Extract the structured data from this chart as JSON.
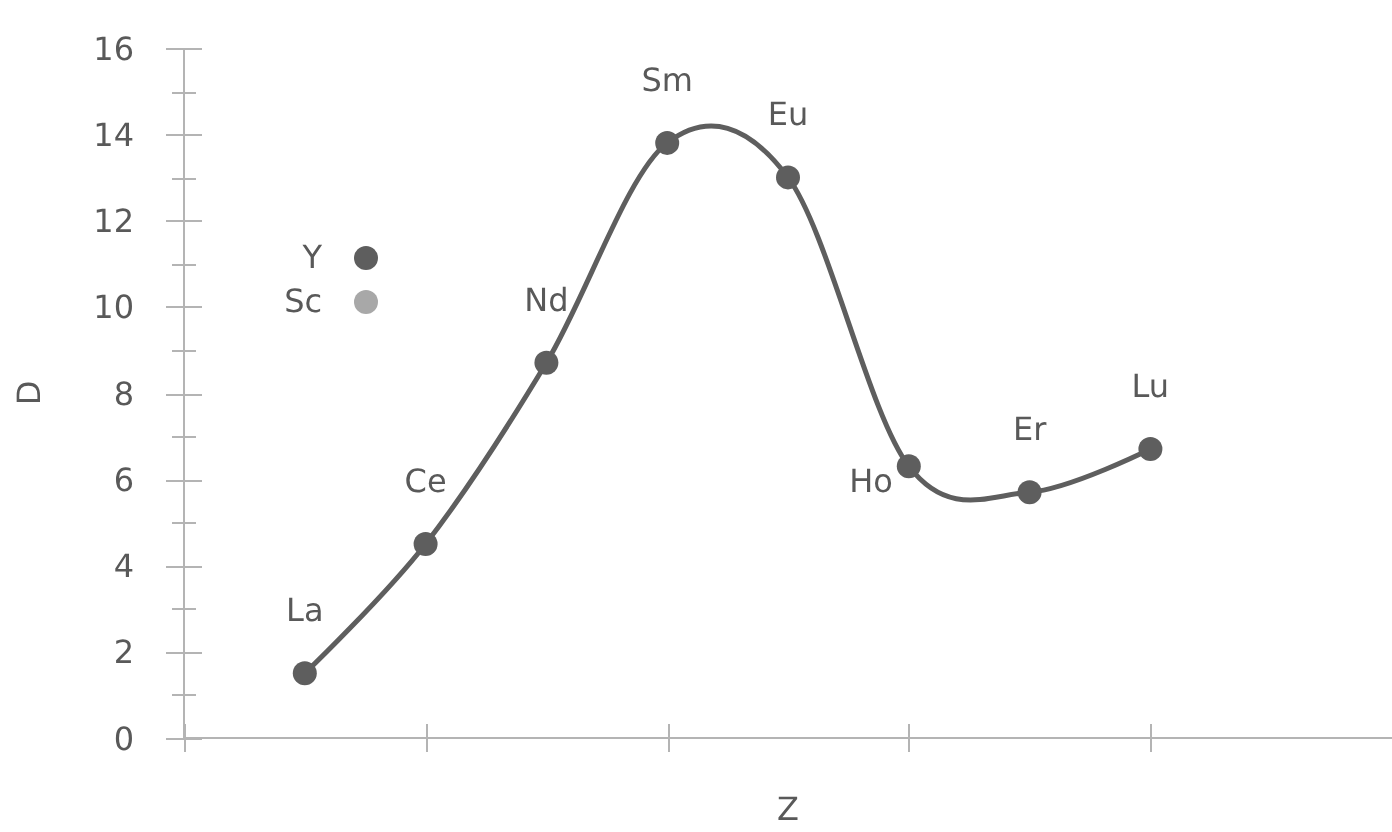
{
  "chart_data": {
    "type": "line",
    "xlabel": "Z",
    "ylabel": "D",
    "categories": [
      null,
      null,
      null,
      null,
      null,
      null,
      null,
      null
    ],
    "series": [
      {
        "name": "Y",
        "color": "#5e5e5e",
        "values": [
          1.5,
          4.5,
          8.7,
          13.8,
          13.0,
          6.3,
          5.7,
          6.7
        ],
        "value_labels": [
          "La",
          "Ce",
          "Nd",
          "Sm",
          "Eu",
          "Ho",
          "Er",
          "Lu"
        ]
      },
      {
        "name": "Sc",
        "color": "#a8a8a8",
        "values": [
          null,
          null,
          null,
          null,
          null,
          null,
          null,
          null
        ]
      }
    ],
    "ylim": [
      0,
      16
    ],
    "yticks": [
      0,
      2,
      4,
      6,
      8,
      10,
      12,
      14,
      16
    ],
    "tick_labels": "y",
    "legend": "top left",
    "marker": "circle",
    "line_style": "solid"
  }
}
